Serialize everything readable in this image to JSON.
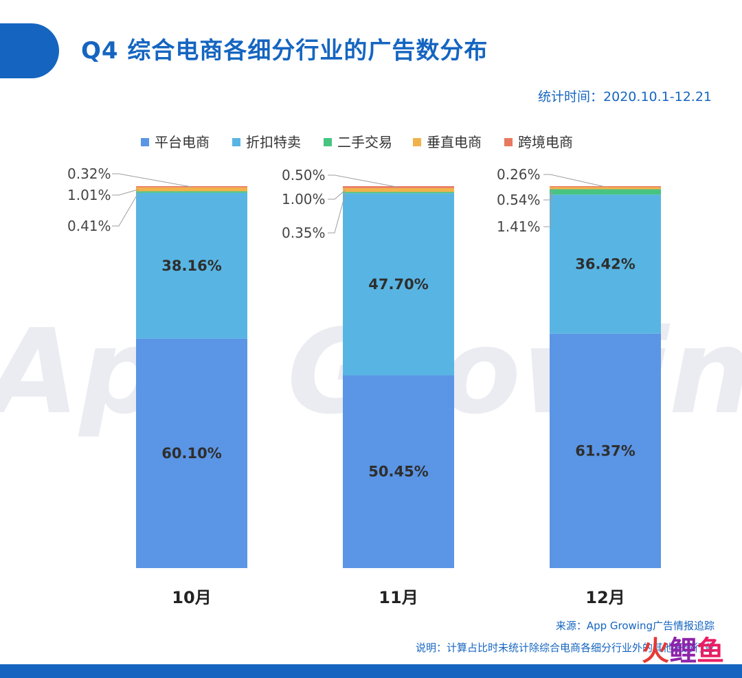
{
  "title": "Q4 综合电商各细分行业的广告数分布",
  "period": "统计时间：2020.10.1-12.21",
  "source": "来源：App Growing广告情报追踪",
  "note": "说明：计算占比时未统计除综合电商各细分行业外的其他细分行业",
  "watermark": "App Growing",
  "corner_logo": [
    "火",
    "鲤",
    "鱼"
  ],
  "colors": {
    "accent": "#1565c0",
    "series": [
      "#5b95e5",
      "#58b5e3",
      "#47c482",
      "#f2b24a",
      "#e8795f"
    ]
  },
  "chart_data": {
    "type": "bar",
    "stacked": true,
    "percent": true,
    "categories": [
      "10月",
      "11月",
      "12月"
    ],
    "ylim": [
      0,
      100
    ],
    "legend_position": "top-center",
    "series": [
      {
        "name": "平台电商",
        "values": [
          60.1,
          50.45,
          61.37
        ],
        "labels": [
          "60.10%",
          "50.45%",
          "61.37%"
        ]
      },
      {
        "name": "折扣特卖",
        "values": [
          38.16,
          47.7,
          36.42
        ],
        "labels": [
          "38.16%",
          "47.70%",
          "36.42%"
        ]
      },
      {
        "name": "二手交易",
        "values": [
          0.41,
          0.35,
          1.41
        ],
        "labels": [
          "0.41%",
          "0.35%",
          "1.41%"
        ]
      },
      {
        "name": "垂直电商",
        "values": [
          1.01,
          1.0,
          0.54
        ],
        "labels": [
          "1.01%",
          "1.00%",
          "0.54%"
        ]
      },
      {
        "name": "跨境电商",
        "values": [
          0.32,
          0.5,
          0.26
        ],
        "labels": [
          "0.32%",
          "0.50%",
          "0.26%"
        ]
      }
    ]
  }
}
